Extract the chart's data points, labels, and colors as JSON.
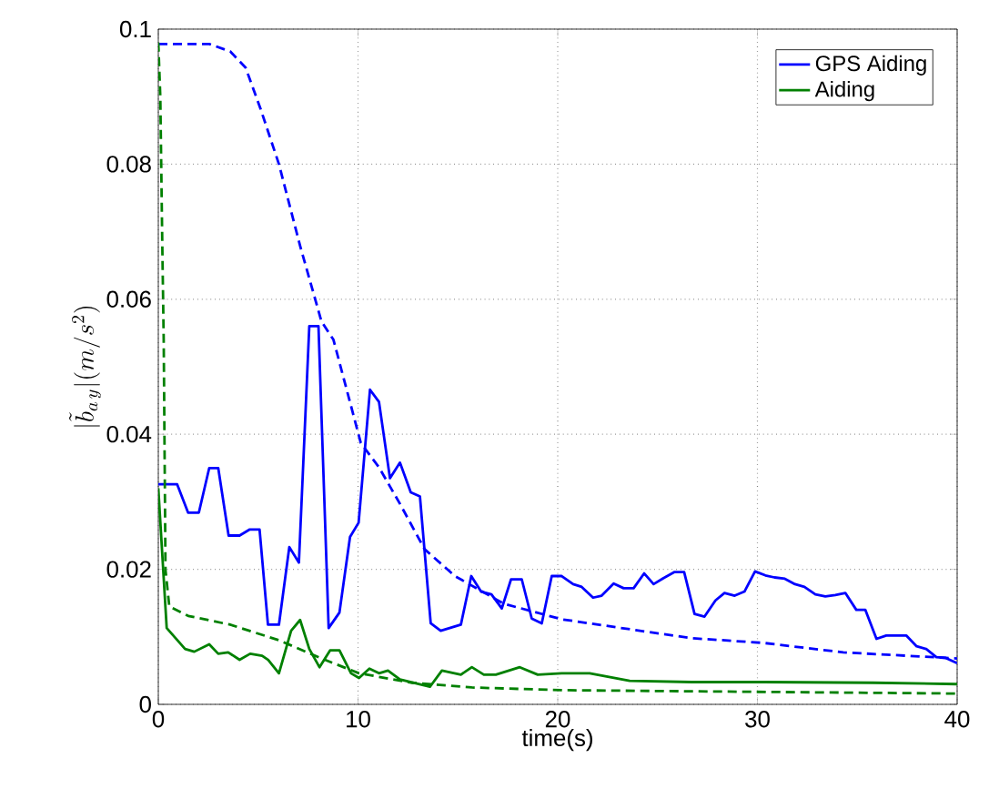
{
  "chart_data": {
    "type": "line",
    "xlabel": "time(s)",
    "ylabel": "|\\tilde{b}_{a\\,y}|(m/s^2)",
    "xlim": [
      0,
      40
    ],
    "ylim": [
      0,
      0.1
    ],
    "xticks": [
      0,
      10,
      20,
      30,
      40
    ],
    "yticks": [
      0,
      0.02,
      0.04,
      0.06,
      0.08,
      0.1
    ],
    "grid": true,
    "legend": "top right",
    "series": [
      {
        "name": "GPS Aiding",
        "color": "#0000ff",
        "line_style": "solid",
        "x": [
          0,
          0.94,
          1.49,
          2.03,
          2.55,
          3.0,
          3.52,
          4.07,
          4.58,
          5.07,
          5.49,
          6.04,
          6.56,
          7.04,
          7.56,
          8.02,
          8.53,
          9.07,
          9.6,
          10.03,
          10.6,
          11.05,
          11.6,
          12.1,
          12.64,
          13.1,
          13.64,
          14.14,
          15.15,
          15.67,
          16.16,
          16.68,
          17.2,
          17.66,
          18.2,
          18.7,
          19.2,
          19.7,
          20.2,
          20.77,
          21.2,
          21.77,
          22.2,
          22.8,
          23.3,
          23.8,
          24.33,
          24.8,
          25.3,
          25.85,
          26.33,
          26.85,
          27.35,
          27.9,
          28.35,
          28.86,
          29.35,
          29.88,
          30.4,
          30.85,
          31.37,
          31.88,
          32.35,
          32.9,
          33.4,
          33.9,
          34.4,
          34.95,
          35.4,
          35.96,
          36.45,
          37.45,
          37.97,
          38.45,
          38.96,
          39.4,
          40
        ],
        "values": [
          0.0326,
          0.0326,
          0.0284,
          0.0284,
          0.035,
          0.035,
          0.025,
          0.025,
          0.0259,
          0.0259,
          0.0118,
          0.0118,
          0.0233,
          0.021,
          0.056,
          0.056,
          0.0113,
          0.0136,
          0.0248,
          0.0269,
          0.0466,
          0.0448,
          0.0335,
          0.0358,
          0.0314,
          0.0308,
          0.012,
          0.0109,
          0.0118,
          0.019,
          0.0167,
          0.0163,
          0.0142,
          0.0185,
          0.0185,
          0.0127,
          0.012,
          0.019,
          0.019,
          0.0178,
          0.0174,
          0.0158,
          0.0161,
          0.0179,
          0.0172,
          0.0172,
          0.0194,
          0.0178,
          0.0187,
          0.0196,
          0.0196,
          0.0134,
          0.013,
          0.0154,
          0.0165,
          0.0161,
          0.0167,
          0.0197,
          0.0191,
          0.0188,
          0.0186,
          0.0178,
          0.0174,
          0.0163,
          0.016,
          0.0162,
          0.0165,
          0.014,
          0.014,
          0.0097,
          0.0102,
          0.0102,
          0.0086,
          0.0082,
          0.007,
          0.0069,
          0.0061
        ]
      },
      {
        "name": "Aiding",
        "color": "#008000",
        "line_style": "solid",
        "x": [
          0,
          0.42,
          1.34,
          1.8,
          2.55,
          3.0,
          3.5,
          4.07,
          4.6,
          5.2,
          5.5,
          6.04,
          6.65,
          7.1,
          7.56,
          8.07,
          8.6,
          9.07,
          9.65,
          10.05,
          10.57,
          11.05,
          11.5,
          12.1,
          13.6,
          14.2,
          15.15,
          15.7,
          16.3,
          16.9,
          18.1,
          19.0,
          20.2,
          21.6,
          23.6,
          26.7,
          30.3,
          35.8,
          40
        ],
        "values": [
          0.032,
          0.0113,
          0.0082,
          0.0078,
          0.0089,
          0.0075,
          0.0077,
          0.0066,
          0.0075,
          0.0072,
          0.0066,
          0.0046,
          0.0109,
          0.0125,
          0.0082,
          0.0055,
          0.008,
          0.008,
          0.0046,
          0.0039,
          0.0053,
          0.0046,
          0.005,
          0.0037,
          0.0026,
          0.005,
          0.0044,
          0.0055,
          0.0044,
          0.0044,
          0.0055,
          0.0044,
          0.0046,
          0.0046,
          0.0035,
          0.0033,
          0.0033,
          0.0032,
          0.003
        ]
      },
      {
        "color": "#0000ff",
        "line_style": "dashed",
        "x": [
          0,
          2.55,
          3.6,
          4.37,
          5.13,
          6.04,
          7.1,
          8.17,
          8.77,
          10.14,
          11.05,
          12.1,
          13.33,
          14.85,
          17.3,
          20.2,
          23.66,
          26.7,
          30.3,
          34.3,
          40
        ],
        "values": [
          0.0978,
          0.0978,
          0.0967,
          0.0943,
          0.0881,
          0.08,
          0.0679,
          0.0567,
          0.054,
          0.0387,
          0.0351,
          0.0297,
          0.023,
          0.019,
          0.0149,
          0.0126,
          0.0111,
          0.0098,
          0.0091,
          0.0077,
          0.0068
        ]
      },
      {
        "color": "#008000",
        "line_style": "dashed",
        "x": [
          0,
          0.1,
          0.2,
          0.27,
          0.36,
          0.55,
          1.5,
          3.6,
          6.04,
          8.17,
          10.05,
          12.7,
          15.7,
          20.2,
          40
        ],
        "values": [
          0.098,
          0.09,
          0.068,
          0.054,
          0.0199,
          0.0145,
          0.0131,
          0.0118,
          0.0095,
          0.0068,
          0.0046,
          0.0032,
          0.0025,
          0.0021,
          0.0016
        ]
      }
    ]
  }
}
